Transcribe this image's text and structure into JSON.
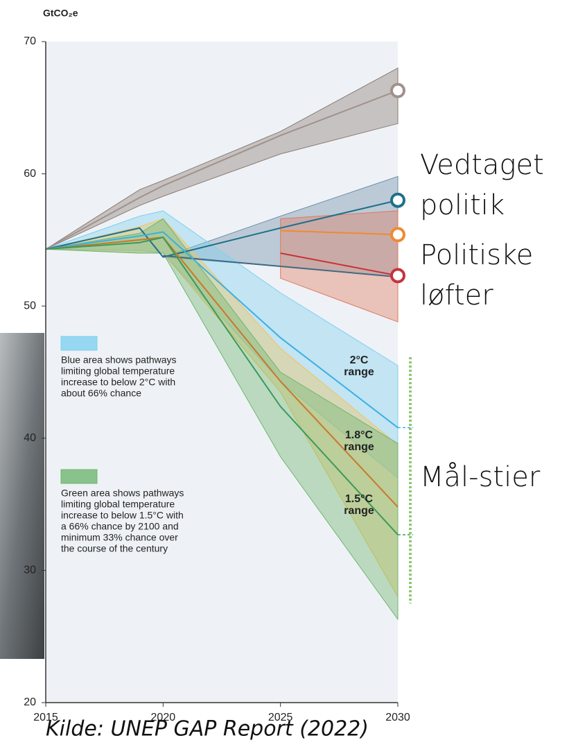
{
  "chart_data": {
    "type": "line",
    "y_label": "GtCO₂e",
    "x": [
      2015,
      2019,
      2020,
      2025,
      2030
    ],
    "xlim": [
      2015,
      2030
    ],
    "xticks": [
      2015,
      2020,
      2025,
      2030
    ],
    "ylim": [
      20,
      70
    ],
    "yticks": [
      20,
      30,
      40,
      50,
      60,
      70
    ],
    "series": [
      {
        "color": "#a0918c",
        "marker": true,
        "values": [
          54.3,
          58.2,
          59.1,
          62.9,
          66.3
        ]
      },
      {
        "color": "#1f6f8b",
        "marker": true,
        "values": [
          54.3,
          55.9,
          53.7,
          55.9,
          58.0
        ]
      },
      {
        "color": "#3d6a85",
        "marker": false,
        "values": [
          null,
          null,
          53.8,
          53.0,
          52.2
        ]
      },
      {
        "color": "#f08a30",
        "marker": true,
        "values": [
          null,
          null,
          null,
          55.7,
          55.4
        ]
      },
      {
        "color": "#c8323c",
        "marker": true,
        "values": [
          null,
          null,
          null,
          54.0,
          52.3
        ]
      },
      {
        "color": "#3ab0e2",
        "marker": false,
        "values": [
          54.3,
          55.3,
          55.6,
          47.6,
          40.8
        ]
      },
      {
        "color": "#c8782a",
        "marker": false,
        "values": [
          54.3,
          55.0,
          55.2,
          44.3,
          34.8
        ]
      },
      {
        "color": "#3a9a5a",
        "marker": false,
        "values": [
          54.3,
          54.8,
          55.2,
          42.4,
          32.7
        ]
      }
    ],
    "bands": [
      {
        "color": "#8a7a72",
        "upper": [
          54.3,
          58.8,
          59.5,
          63.2,
          68.0
        ],
        "lower": [
          54.3,
          57.6,
          58.3,
          61.5,
          63.8
        ]
      },
      {
        "color": "#6f8fa8",
        "upper": [
          null,
          null,
          53.7,
          56.8,
          59.8
        ],
        "lower": [
          null,
          null,
          53.7,
          53.0,
          52.2
        ]
      },
      {
        "color": "#e07a5f",
        "upper": [
          null,
          null,
          null,
          56.6,
          57.2
        ],
        "lower": [
          null,
          null,
          null,
          52.1,
          48.8
        ]
      },
      {
        "color": "#7fd0f0",
        "upper": [
          54.3,
          56.8,
          57.2,
          51.0,
          45.5
        ],
        "lower": [
          54.3,
          54.2,
          54.0,
          44.3,
          37.0
        ]
      },
      {
        "color": "#f5c35a",
        "upper": [
          54.3,
          56.0,
          56.6,
          46.8,
          39.5
        ],
        "lower": [
          54.3,
          54.0,
          54.0,
          43.5,
          28.0
        ]
      },
      {
        "color": "#6fb56f",
        "upper": [
          54.3,
          55.5,
          56.6,
          45.0,
          39.6
        ],
        "lower": [
          54.3,
          54.0,
          54.0,
          38.6,
          26.3
        ]
      }
    ],
    "range_labels": [
      [
        "2°C",
        "range"
      ],
      [
        "1.8°C",
        "range"
      ],
      [
        "1.5°C",
        "range"
      ]
    ],
    "legend": [
      {
        "color": "#7fd0f0",
        "lines": [
          "Blue area shows pathways",
          "limiting global temperature",
          "increase to below 2°C with",
          "about 66% chance"
        ]
      },
      {
        "color": "#6fb56f",
        "lines": [
          "Green area shows pathways",
          "limiting global temperature",
          "increase to below 1.5°C with",
          "a 66% chance by 2100 and",
          "minimum 33% chance over",
          "the course of the century"
        ]
      }
    ]
  },
  "slide": {
    "labels": [
      [
        "Vedtaget",
        "politik"
      ],
      [
        "Politiske",
        "løfter"
      ],
      [
        "Mål-stier"
      ]
    ],
    "source": "Kilde: UNEP GAP Report (2022)"
  }
}
